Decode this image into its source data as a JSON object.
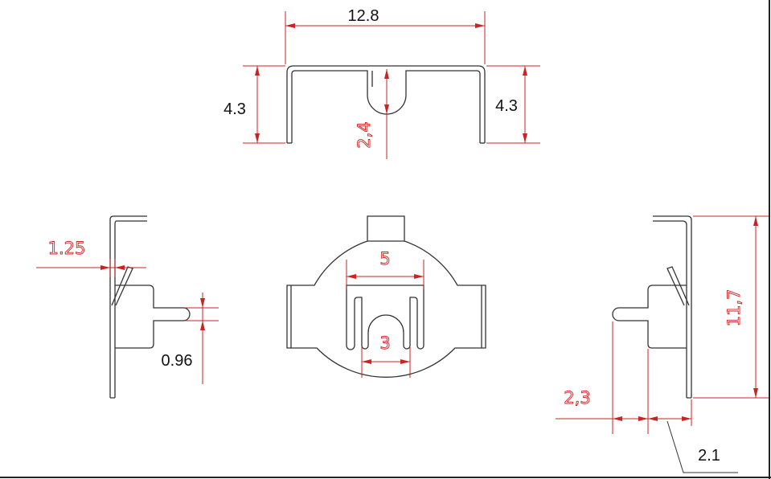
{
  "labels": {
    "top_width": "12.8",
    "top_left_height": "4.3",
    "top_right_height": "4.3",
    "slot_depth": "2,4",
    "tab_offset": "1.25",
    "finger_width": "0.96",
    "outer_slot_width": "5",
    "inner_slot_width": "3",
    "total_height": "11,7",
    "finger_length": "2,3",
    "body_offset": "2.1"
  },
  "colors": {
    "part_outline": "#333333",
    "dimension": "#cc2222",
    "dark_text": "#111111"
  }
}
